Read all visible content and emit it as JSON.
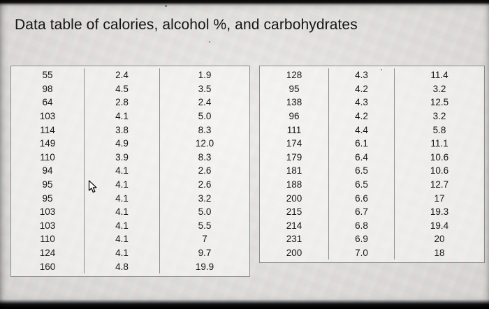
{
  "chart_data": {
    "type": "table",
    "title": "Data table of calories, alcohol %, and carbohydrates",
    "column_meanings": [
      "calories",
      "alcohol_percent",
      "carbohydrates"
    ],
    "left_table": {
      "calories": [
        "55",
        "98",
        "64",
        "103",
        "114",
        "149",
        "110",
        "94",
        "95",
        "95",
        "103",
        "103",
        "110",
        "124",
        "160"
      ],
      "alcohol_percent": [
        "2.4",
        "4.5",
        "2.8",
        "4.1",
        "3.8",
        "4.9",
        "3.9",
        "4.1",
        "4.1",
        "4.1",
        "4.1",
        "4.1",
        "4.1",
        "4.1",
        "4.8"
      ],
      "carbohydrates": [
        "1.9",
        "3.5",
        "2.4",
        "5.0",
        "8.3",
        "12.0",
        "8.3",
        "2.6",
        "2.6",
        "3.2",
        "5.0",
        "5.5",
        "7",
        "9.7",
        "19.9"
      ]
    },
    "right_table": {
      "calories": [
        "128",
        "95",
        "138",
        "96",
        "111",
        "174",
        "179",
        "181",
        "188",
        "200",
        "215",
        "214",
        "231",
        "200"
      ],
      "alcohol_percent": [
        "4.3",
        "4.2",
        "4.3",
        "4.2",
        "4.4",
        "6.1",
        "6.4",
        "6.5",
        "6.5",
        "6.6",
        "6.7",
        "6.8",
        "6.9",
        "7.0"
      ],
      "carbohydrates": [
        "11.4",
        "3.2",
        "12.5",
        "3.2",
        "5.8",
        "11.1",
        "10.6",
        "10.6",
        "12.7",
        "17",
        "19.3",
        "19.4",
        "20",
        "18"
      ]
    }
  },
  "icons": {
    "cursor": "arrow-cursor"
  },
  "colors": {
    "background": "#e5e3e0",
    "border": "#8d8d8b",
    "text": "#161616",
    "edge": "#000000"
  }
}
